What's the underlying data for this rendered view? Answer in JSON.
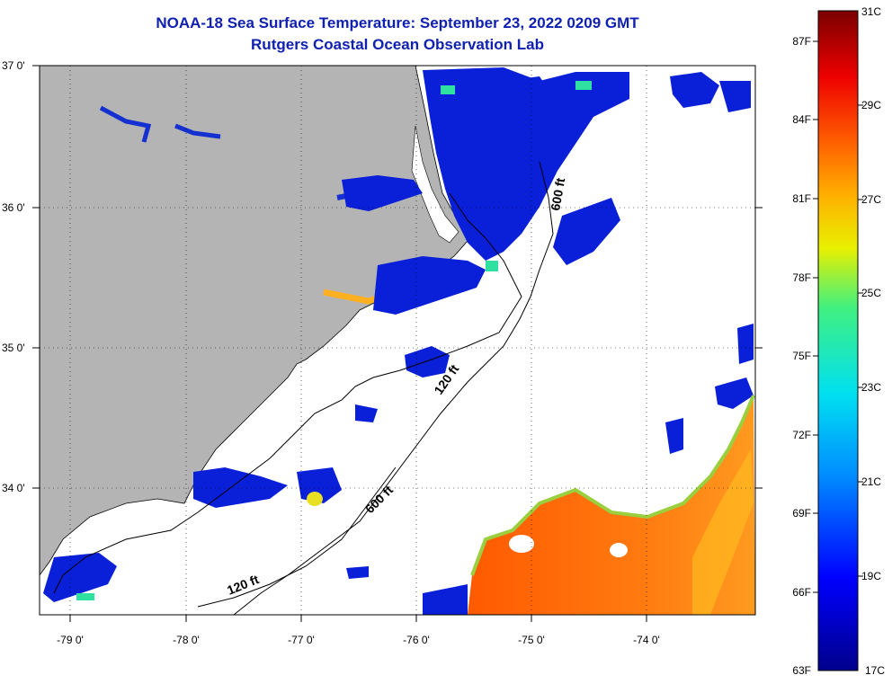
{
  "header": {
    "title": "NOAA-18 Sea Surface Temperature:  September 23, 2022 0209 GMT",
    "subtitle": "Rutgers Coastal Ocean Observation Lab"
  },
  "map": {
    "lon_labels": [
      "-79 0'",
      "-78 0'",
      "-77 0'",
      "-76 0'",
      "-75 0'",
      "-74 0'"
    ],
    "lat_labels": [
      "37 0'",
      "36 0'",
      "35 0'",
      "34 0'"
    ],
    "isobath_labels": [
      "120 ft",
      "600 ft",
      "120 ft",
      "600 ft"
    ],
    "colors": {
      "land": "#b4b4b4",
      "cloud": "#ffffff",
      "coast": "#000000"
    }
  },
  "colorbar": {
    "fahrenheit_labels": [
      "87F",
      "84F",
      "81F",
      "78F",
      "75F",
      "72F",
      "69F",
      "66F",
      "63F"
    ],
    "celsius_labels": [
      "31C",
      "29C",
      "27C",
      "25C",
      "23C",
      "21C",
      "19C",
      "17C"
    ],
    "range_c": [
      17,
      31
    ]
  }
}
